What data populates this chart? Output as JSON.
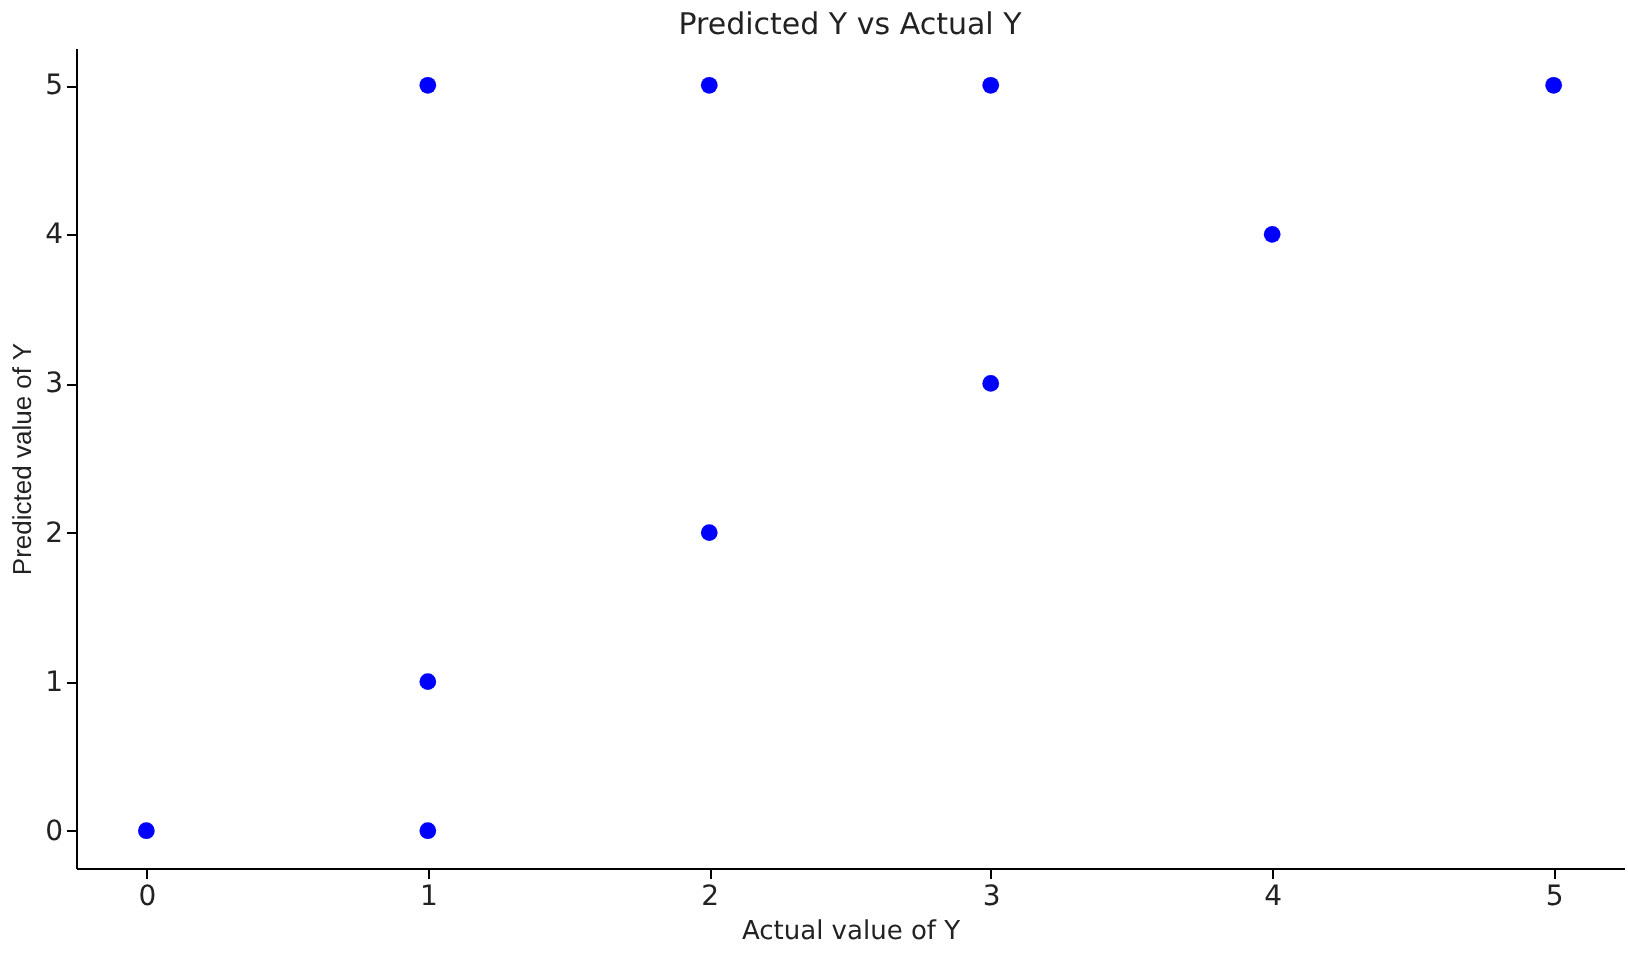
{
  "chart_data": {
    "type": "scatter",
    "title": "Predicted Y vs Actual Y",
    "xlabel": "Actual value of Y",
    "ylabel": "Predicted value of Y",
    "x": [
      0,
      1,
      1,
      1,
      2,
      2,
      3,
      3,
      4,
      5
    ],
    "series": [
      {
        "color": "#0000ff",
        "values": [
          0,
          0,
          1,
          5,
          2,
          5,
          3,
          5,
          4,
          5
        ]
      }
    ],
    "xlim": [
      -0.25,
      5.25
    ],
    "ylim": [
      -0.25,
      5.25
    ],
    "xticks": [
      0,
      1,
      2,
      3,
      4,
      5
    ],
    "yticks": [
      0,
      1,
      2,
      3,
      4,
      5
    ],
    "marker": "circle",
    "grid": false,
    "legend": false
  }
}
